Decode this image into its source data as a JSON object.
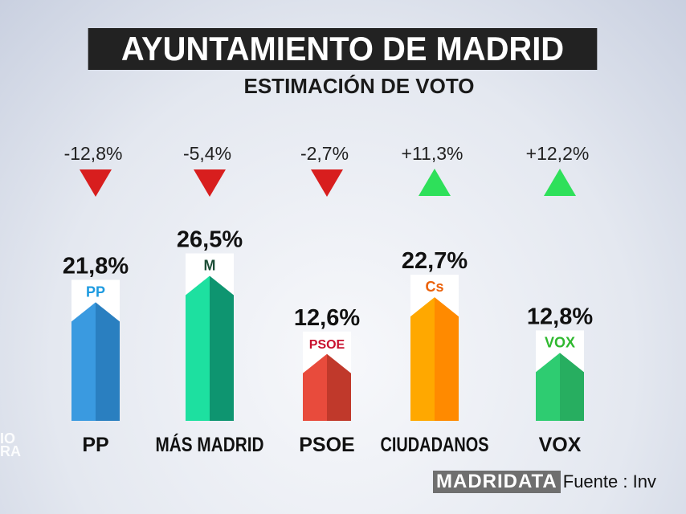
{
  "header": {
    "title": "AYUNTAMIENTO DE MADRID",
    "subtitle": "ESTIMACIÓN DE VOTO"
  },
  "chart_data": {
    "type": "bar",
    "title": "AYUNTAMIENTO DE MADRID",
    "subtitle": "ESTIMACIÓN DE VOTO",
    "categories": [
      "PP",
      "MÁS MADRID",
      "PSOE",
      "CIUDADANOS",
      "VOX"
    ],
    "values": [
      21.8,
      26.5,
      12.6,
      22.7,
      12.8
    ],
    "value_labels": [
      "21,8%",
      "26,5%",
      "12,6%",
      "22,7%",
      "12,8%"
    ],
    "changes": [
      -12.8,
      -5.4,
      -2.7,
      11.3,
      12.2
    ],
    "change_labels": [
      "-12,8%",
      "-5,4%",
      "-2,7%",
      "+11,3%",
      "+12,2%"
    ],
    "logos": [
      "PP",
      "M",
      "PSOE",
      "Cs",
      "VOX"
    ],
    "colors": [
      [
        "#3a9ae0",
        "#2a7fc0"
      ],
      [
        "#1de0a0",
        "#0e9570"
      ],
      [
        "#e84b3c",
        "#c0392b"
      ],
      [
        "#ffa800",
        "#ff8a00"
      ],
      [
        "#2ecc71",
        "#27ae60"
      ]
    ],
    "logo_colors": [
      "#1e9be0",
      "#1b4d36",
      "#c8102e",
      "#eb6109",
      "#2eb82e"
    ],
    "down_color": "#d81e1e",
    "up_color": "#2ee05a"
  },
  "footer": {
    "brand": "MADRIDATA",
    "source": "Fuente : Inv",
    "watermark": "IO DE\nRA"
  }
}
